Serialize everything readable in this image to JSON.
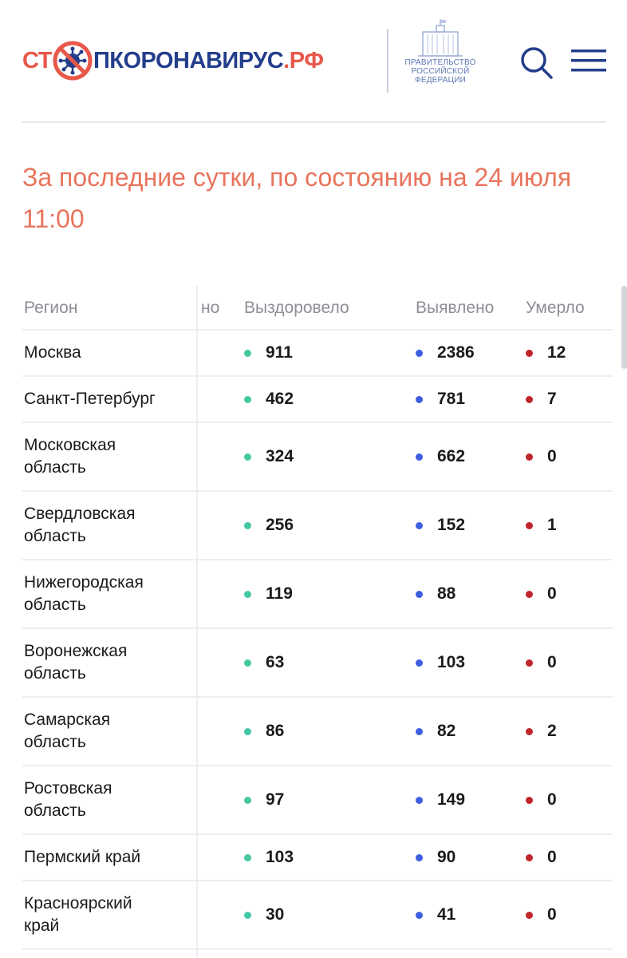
{
  "header": {
    "logo": {
      "part1": "СТ",
      "part2": "ПКОРОНАВИРУС",
      "part3": ".РФ"
    },
    "gov_text": [
      "ПРАВИТЕЛЬСТВО",
      "РОССИЙСКОЙ",
      "ФЕДЕРАЦИИ"
    ],
    "search_icon": "search-icon",
    "menu_icon": "hamburger-menu-icon"
  },
  "colors": {
    "brand_orange": "#e8584a",
    "brand_blue": "#233e8b",
    "recovered": "#45c7a3",
    "detected": "#3d5fe0",
    "died": "#c0252c"
  },
  "heading": {
    "line1": "За последние сутки, по состоянию на 24 июля",
    "line2": "11:00"
  },
  "table": {
    "headers": {
      "region": "Регион",
      "partial": "но",
      "recovered": "Выздоровело",
      "detected": "Выявлено",
      "died": "Умерло"
    },
    "rows": [
      {
        "region": [
          "Москва"
        ],
        "recovered": "911",
        "detected": "2386",
        "died": "12"
      },
      {
        "region": [
          "Санкт-Петербург"
        ],
        "recovered": "462",
        "detected": "781",
        "died": "7"
      },
      {
        "region": [
          "Московская",
          "область"
        ],
        "recovered": "324",
        "detected": "662",
        "died": "0"
      },
      {
        "region": [
          "Свердловская",
          "область"
        ],
        "recovered": "256",
        "detected": "152",
        "died": "1"
      },
      {
        "region": [
          "Нижегородская",
          "область"
        ],
        "recovered": "119",
        "detected": "88",
        "died": "0"
      },
      {
        "region": [
          "Воронежская",
          "область"
        ],
        "recovered": "63",
        "detected": "103",
        "died": "0"
      },
      {
        "region": [
          "Самарская",
          "область"
        ],
        "recovered": "86",
        "detected": "82",
        "died": "2"
      },
      {
        "region": [
          "Ростовская",
          "область"
        ],
        "recovered": "97",
        "detected": "149",
        "died": "0"
      },
      {
        "region": [
          "Пермский край"
        ],
        "recovered": "103",
        "detected": "90",
        "died": "0"
      },
      {
        "region": [
          "Красноярский",
          "край"
        ],
        "recovered": "30",
        "detected": "41",
        "died": "0"
      }
    ]
  }
}
